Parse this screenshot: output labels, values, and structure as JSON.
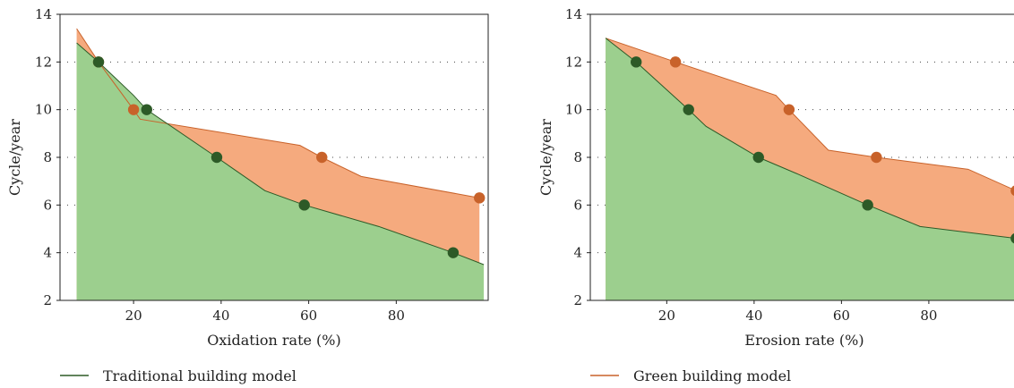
{
  "chart_data": [
    {
      "type": "area",
      "xlabel": "Oxidation rate (%)",
      "ylabel": "Cycle/year",
      "xlim": [
        0,
        100
      ],
      "ylim": [
        2,
        14
      ],
      "xticks": [
        20,
        40,
        60,
        80
      ],
      "yticks": [
        2,
        4,
        6,
        8,
        10,
        12,
        14
      ],
      "grid": "horizontal dotted",
      "series": [
        {
          "name": "Green building model",
          "color": "#c8622a",
          "fill": "#f5aa7e",
          "line": [
            [
              7,
              13.4
            ],
            [
              12,
              12
            ],
            [
              20,
              10
            ],
            [
              21.5,
              9.6
            ],
            [
              58,
              8.5
            ],
            [
              63,
              8
            ],
            [
              72,
              7.2
            ],
            [
              99,
              6.3
            ]
          ],
          "markers": [
            [
              12,
              12
            ],
            [
              20,
              10
            ],
            [
              63,
              8
            ],
            [
              99,
              6.3
            ]
          ]
        },
        {
          "name": "Traditional building model",
          "color": "#2d5a27",
          "fill": "#9ccf8e",
          "line": [
            [
              7,
              12.8
            ],
            [
              12,
              12
            ],
            [
              20,
              10.6
            ],
            [
              23,
              10
            ],
            [
              39,
              8
            ],
            [
              50,
              6.6
            ],
            [
              59,
              6
            ],
            [
              76,
              5.1
            ],
            [
              93,
              4
            ],
            [
              100,
              3.5
            ]
          ],
          "markers": [
            [
              12,
              12
            ],
            [
              23,
              10
            ],
            [
              39,
              8
            ],
            [
              59,
              6
            ],
            [
              93,
              4
            ]
          ]
        }
      ]
    },
    {
      "type": "area",
      "xlabel": "Erosion rate (%)",
      "ylabel": "Cycle/year",
      "xlim": [
        0,
        100
      ],
      "ylim": [
        2,
        14
      ],
      "xticks": [
        20,
        40,
        60,
        80
      ],
      "yticks": [
        2,
        4,
        6,
        8,
        10,
        12,
        14
      ],
      "grid": "horizontal dotted",
      "series": [
        {
          "name": "Green building model",
          "color": "#c8622a",
          "fill": "#f5aa7e",
          "line": [
            [
              6,
              13
            ],
            [
              22,
              12
            ],
            [
              45,
              10.6
            ],
            [
              48,
              10
            ],
            [
              57,
              8.3
            ],
            [
              68,
              8
            ],
            [
              89,
              7.5
            ],
            [
              100,
              6.6
            ]
          ],
          "markers": [
            [
              22,
              12
            ],
            [
              48,
              10
            ],
            [
              68,
              8
            ],
            [
              100,
              6.6
            ]
          ]
        },
        {
          "name": "Traditional building model",
          "color": "#2d5a27",
          "fill": "#9ccf8e",
          "line": [
            [
              6,
              13
            ],
            [
              13,
              12
            ],
            [
              25,
              10
            ],
            [
              29,
              9.3
            ],
            [
              41,
              8
            ],
            [
              50,
              7.3
            ],
            [
              66,
              6
            ],
            [
              78,
              5.1
            ],
            [
              100,
              4.6
            ]
          ],
          "markers": [
            [
              13,
              12
            ],
            [
              25,
              10
            ],
            [
              41,
              8
            ],
            [
              66,
              6
            ],
            [
              100,
              4.6
            ]
          ]
        }
      ]
    }
  ],
  "legend": [
    {
      "label": "Traditional building model",
      "color": "#2d5a27"
    },
    {
      "label": "Green building model",
      "color": "#c8622a"
    }
  ]
}
